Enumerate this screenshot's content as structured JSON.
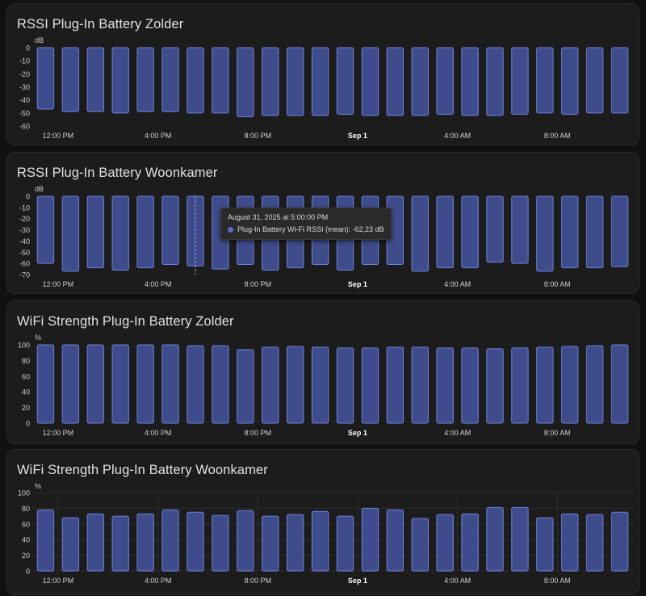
{
  "colors": {
    "bar_fill": "#3f4c8c",
    "bar_stroke": "#6f80d6",
    "grid": "#2c2c2c",
    "text": "#e1e1e1",
    "axis_text": "#d0d0d0"
  },
  "x_tick_labels": [
    "12:00 PM",
    "4:00 PM",
    "8:00 PM",
    "Sep 1",
    "4:00 AM",
    "8:00 AM"
  ],
  "x_tick_bold_index": 3,
  "cards": [
    {
      "title": "RSSI Plug-In Battery Zolder",
      "unit": "dB",
      "yticks": [
        0,
        -10,
        -20,
        -30,
        -40,
        -50,
        -60
      ],
      "grid": false
    },
    {
      "title": "RSSI Plug-In Battery Woonkamer",
      "unit": "dB",
      "yticks": [
        0,
        -10,
        -20,
        -30,
        -40,
        -50,
        -60,
        -70
      ],
      "grid": false
    },
    {
      "title": "WiFi Strength Plug-In Battery Zolder",
      "unit": "%",
      "yticks": [
        100,
        80,
        60,
        40,
        20,
        0
      ],
      "grid": false
    },
    {
      "title": "WiFi Strength Plug-In Battery Woonkamer",
      "unit": "%",
      "yticks": [
        100,
        80,
        60,
        40,
        20,
        0
      ],
      "grid": true
    }
  ],
  "tooltip": {
    "title": "August 31, 2025 at 5:00:00 PM",
    "series_label": "Plug-In Battery Wi-Fi RSSI (mean): -62,23 dB"
  },
  "chart_data": [
    {
      "type": "bar",
      "title": "RSSI Plug-In Battery Zolder",
      "ylabel": "dB",
      "ylim": [
        -60,
        0
      ],
      "x_start": "August 31, 2025 11:00 AM",
      "x_interval": "1 hour",
      "values": [
        -47,
        -49,
        -49,
        -50,
        -49,
        -49,
        -50,
        -50,
        -53,
        -52,
        -52,
        -52,
        -51,
        -52,
        -52,
        -52,
        -51,
        -52,
        -52,
        -51,
        -50,
        -51,
        -50,
        -50
      ]
    },
    {
      "type": "bar",
      "title": "RSSI Plug-In Battery Woonkamer",
      "ylabel": "dB",
      "ylim": [
        -70,
        0
      ],
      "x_start": "August 31, 2025 11:00 AM",
      "x_interval": "1 hour",
      "values": [
        -60,
        -67,
        -64,
        -66,
        -64,
        -61,
        -62.23,
        -65,
        -61,
        -66,
        -64,
        -61,
        -66,
        -61,
        -61,
        -67,
        -64,
        -64,
        -59,
        -60,
        -67,
        -64,
        -64,
        -63
      ]
    },
    {
      "type": "bar",
      "title": "WiFi Strength Plug-In Battery Zolder",
      "ylabel": "%",
      "ylim": [
        0,
        100
      ],
      "x_start": "August 31, 2025 11:00 AM",
      "x_interval": "1 hour",
      "values": [
        100,
        100,
        100,
        100,
        100,
        100,
        99,
        99,
        94,
        97,
        98,
        97,
        96,
        96,
        97,
        97,
        96,
        96,
        95,
        96,
        97,
        98,
        99,
        100
      ]
    },
    {
      "type": "bar",
      "title": "WiFi Strength Plug-In Battery Woonkamer",
      "ylabel": "%",
      "ylim": [
        0,
        100
      ],
      "x_start": "August 31, 2025 11:00 AM",
      "x_interval": "1 hour",
      "values": [
        78,
        68,
        73,
        70,
        73,
        78,
        75,
        71,
        77,
        70,
        72,
        76,
        70,
        80,
        78,
        67,
        72,
        73,
        81,
        81,
        68,
        73,
        72,
        75
      ]
    }
  ]
}
